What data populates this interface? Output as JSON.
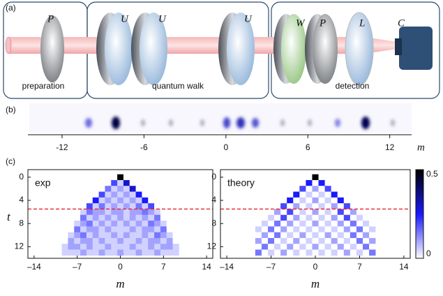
{
  "panel_a": {
    "label": "(a)",
    "components": [
      "P",
      "U",
      "U",
      "U",
      "W",
      "P",
      "L",
      "C"
    ],
    "sections": [
      "preparation",
      "quantum walk",
      "detection"
    ]
  },
  "panel_b": {
    "label": "(b)",
    "xlabel": "m",
    "xlim": [
      -14.5,
      13.6
    ],
    "xticks": [
      {
        "value": -12,
        "label": "-12"
      },
      {
        "value": -6,
        "label": "-6"
      },
      0,
      6,
      12
    ]
  },
  "panel_c": {
    "label": "(c)",
    "xlabel": "m",
    "ylabel": "t",
    "colorbar": {
      "lim": [
        0,
        0.5
      ],
      "ticks": [
        0.5,
        0
      ],
      "cmap": [
        "#ffffff",
        "#1a1aff",
        "#000000"
      ]
    },
    "charts": [
      {
        "title": "exp",
        "xlim": [
          -15,
          15
        ],
        "ylim": [
          -1.3,
          14
        ],
        "xticks": [
          {
            "value": -14,
            "label": "–14"
          },
          {
            "value": -7,
            "label": "–7"
          },
          0,
          7,
          14
        ],
        "yticks": [
          0,
          4,
          8,
          12
        ],
        "dashed_t": 5.5,
        "m": [
          -9,
          -8,
          -7,
          -6,
          -5,
          -4,
          -3,
          -2,
          -1,
          0,
          1,
          2,
          3,
          4,
          5,
          6,
          7,
          8,
          9
        ],
        "t": [
          0,
          1,
          2,
          3,
          4,
          5,
          6,
          7,
          8,
          9,
          10,
          11,
          12,
          13
        ],
        "values": [
          [
            0,
            0,
            0,
            0,
            0,
            0,
            0,
            0,
            0,
            0.5,
            0,
            0,
            0,
            0,
            0,
            0,
            0,
            0,
            0
          ],
          [
            0,
            0,
            0,
            0,
            0,
            0,
            0,
            0,
            0.2,
            0.05,
            0.3,
            0,
            0,
            0,
            0,
            0,
            0,
            0,
            0
          ],
          [
            0,
            0,
            0,
            0,
            0,
            0,
            0,
            0.15,
            0.05,
            0.1,
            0.05,
            0.3,
            0,
            0,
            0,
            0,
            0,
            0,
            0
          ],
          [
            0,
            0,
            0,
            0,
            0,
            0,
            0.2,
            0.05,
            0.1,
            0.05,
            0.1,
            0.05,
            0.25,
            0,
            0,
            0,
            0,
            0,
            0
          ],
          [
            0,
            0,
            0,
            0,
            0,
            0.25,
            0.05,
            0.1,
            0.05,
            0.1,
            0.05,
            0.1,
            0.05,
            0.25,
            0,
            0,
            0,
            0,
            0
          ],
          [
            0,
            0,
            0,
            0,
            0.2,
            0.05,
            0.15,
            0.05,
            0.1,
            0.05,
            0.1,
            0.05,
            0.15,
            0.05,
            0.2,
            0,
            0,
            0,
            0
          ],
          [
            0,
            0,
            0,
            0.05,
            0.15,
            0.1,
            0.1,
            0.05,
            0.1,
            0.1,
            0.05,
            0.1,
            0.1,
            0.15,
            0.1,
            0.05,
            0,
            0,
            0
          ],
          [
            0,
            0,
            0,
            0.15,
            0.05,
            0.1,
            0.05,
            0.1,
            0.05,
            0.1,
            0.05,
            0.1,
            0.05,
            0.1,
            0.05,
            0.15,
            0,
            0,
            0
          ],
          [
            0,
            0,
            0.05,
            0.1,
            0.15,
            0.05,
            0.1,
            0.05,
            0.1,
            0.05,
            0.1,
            0.05,
            0.1,
            0.05,
            0.15,
            0.1,
            0.05,
            0,
            0
          ],
          [
            0,
            0,
            0.15,
            0.05,
            0.1,
            0.1,
            0.05,
            0.1,
            0.05,
            0.05,
            0.05,
            0.1,
            0.05,
            0.1,
            0.1,
            0.05,
            0.15,
            0,
            0
          ],
          [
            0,
            0.05,
            0.1,
            0.15,
            0.05,
            0.1,
            0.05,
            0.05,
            0.1,
            0.05,
            0.1,
            0.05,
            0.05,
            0.1,
            0.05,
            0.15,
            0.1,
            0.05,
            0
          ],
          [
            0,
            0.1,
            0.05,
            0.1,
            0.1,
            0.05,
            0.1,
            0.05,
            0.05,
            0.1,
            0.05,
            0.05,
            0.1,
            0.05,
            0.1,
            0.1,
            0.05,
            0.1,
            0
          ],
          [
            0.05,
            0.1,
            0.1,
            0.05,
            0.1,
            0.05,
            0.05,
            0.1,
            0.05,
            0.05,
            0.05,
            0.1,
            0.05,
            0.05,
            0.1,
            0.05,
            0.1,
            0.1,
            0.05
          ],
          [
            0.05,
            0.05,
            0.05,
            0.1,
            0.05,
            0.05,
            0.1,
            0.05,
            0.05,
            0.1,
            0.05,
            0.05,
            0.1,
            0.05,
            0.05,
            0.1,
            0.05,
            0.05,
            0.05
          ]
        ]
      },
      {
        "title": "theory",
        "xlim": [
          -15,
          15
        ],
        "ylim": [
          -1.3,
          14
        ],
        "xticks": [
          {
            "value": -14,
            "label": "–14"
          },
          {
            "value": -7,
            "label": "–7"
          },
          0,
          7,
          14
        ],
        "yticks": [
          0,
          4,
          8,
          12
        ],
        "dashed_t": 5.5,
        "m": [
          -9,
          -8,
          -7,
          -6,
          -5,
          -4,
          -3,
          -2,
          -1,
          0,
          1,
          2,
          3,
          4,
          5,
          6,
          7,
          8,
          9
        ],
        "t": [
          0,
          1,
          2,
          3,
          4,
          5,
          6,
          7,
          8,
          9,
          10,
          11,
          12,
          13
        ],
        "values": [
          [
            0,
            0,
            0,
            0,
            0,
            0,
            0,
            0,
            0,
            0.5,
            0,
            0,
            0,
            0,
            0,
            0,
            0,
            0,
            0
          ],
          [
            0,
            0,
            0,
            0,
            0,
            0,
            0,
            0,
            0.25,
            0,
            0.25,
            0,
            0,
            0,
            0,
            0,
            0,
            0,
            0
          ],
          [
            0,
            0,
            0,
            0,
            0,
            0,
            0,
            0.2,
            0,
            0.1,
            0,
            0.2,
            0,
            0,
            0,
            0,
            0,
            0,
            0
          ],
          [
            0,
            0,
            0,
            0,
            0,
            0,
            0.25,
            0,
            0.05,
            0,
            0.05,
            0,
            0.25,
            0,
            0,
            0,
            0,
            0,
            0
          ],
          [
            0,
            0,
            0,
            0,
            0,
            0.25,
            0,
            0.05,
            0,
            0.1,
            0,
            0.05,
            0,
            0.25,
            0,
            0,
            0,
            0,
            0
          ],
          [
            0,
            0,
            0,
            0,
            0.2,
            0,
            0.1,
            0,
            0.05,
            0,
            0.05,
            0,
            0.1,
            0,
            0.2,
            0,
            0,
            0,
            0
          ],
          [
            0,
            0,
            0,
            0.1,
            0,
            0.2,
            0,
            0.05,
            0,
            0.1,
            0,
            0.05,
            0,
            0.2,
            0,
            0.1,
            0,
            0,
            0
          ],
          [
            0,
            0,
            0.05,
            0,
            0.2,
            0,
            0.1,
            0,
            0.05,
            0,
            0.05,
            0,
            0.1,
            0,
            0.2,
            0,
            0.05,
            0,
            0
          ],
          [
            0,
            0.05,
            0,
            0.15,
            0,
            0.1,
            0,
            0.05,
            0,
            0.1,
            0,
            0.05,
            0,
            0.1,
            0,
            0.15,
            0,
            0.05,
            0
          ],
          [
            0.05,
            0,
            0.15,
            0,
            0.1,
            0,
            0.05,
            0,
            0.05,
            0,
            0.05,
            0,
            0.05,
            0,
            0.1,
            0,
            0.15,
            0,
            0.05
          ],
          [
            0,
            0.1,
            0,
            0.15,
            0,
            0.05,
            0,
            0.1,
            0,
            0.05,
            0,
            0.1,
            0,
            0.05,
            0,
            0.15,
            0,
            0.1,
            0
          ],
          [
            0.1,
            0,
            0.15,
            0,
            0.05,
            0,
            0.1,
            0,
            0.05,
            0,
            0.05,
            0,
            0.1,
            0,
            0.05,
            0,
            0.15,
            0,
            0.1
          ],
          [
            0,
            0.15,
            0,
            0.05,
            0,
            0.1,
            0,
            0.05,
            0,
            0.1,
            0,
            0.05,
            0,
            0.1,
            0,
            0.05,
            0,
            0.15,
            0
          ],
          [
            0.15,
            0,
            0.05,
            0,
            0.1,
            0,
            0.05,
            0,
            0.05,
            0,
            0.05,
            0,
            0.05,
            0,
            0.1,
            0,
            0.05,
            0,
            0.15
          ]
        ]
      }
    ]
  }
}
